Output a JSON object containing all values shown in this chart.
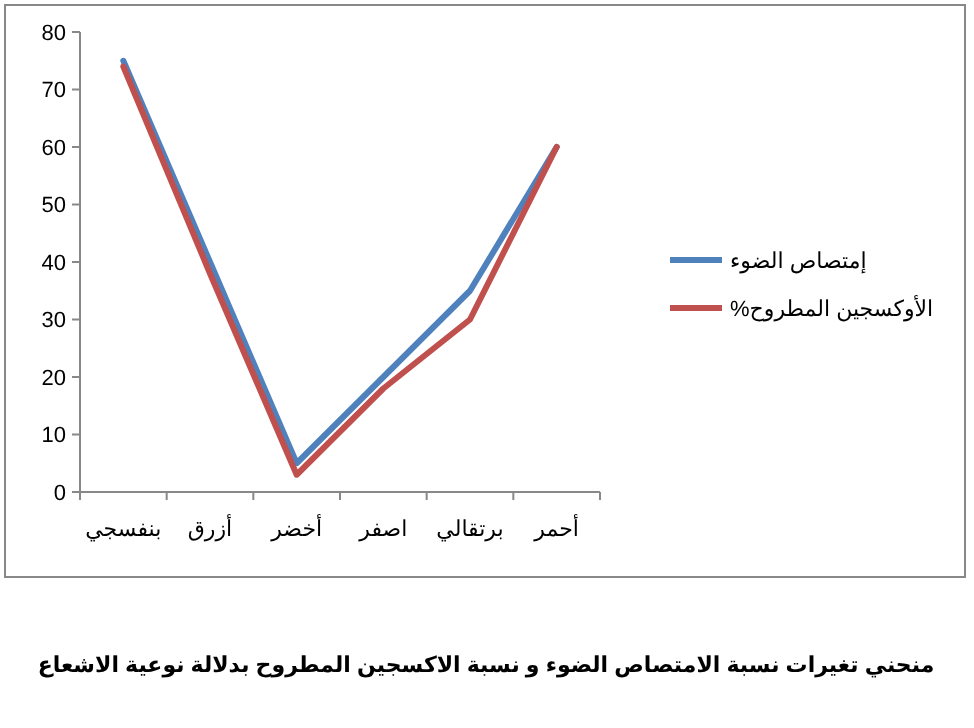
{
  "chart_data": {
    "type": "line",
    "title": "منحني تغيرات نسبة الامتصاص الضوء و نسبة الاكسجين المطروح بدلالة نوعية الاشعاع",
    "categories": [
      "بنفسجي",
      "أزرق",
      "أخضر",
      "اصفر",
      "برتقالي",
      "أحمر"
    ],
    "series": [
      {
        "name": "إمتصاص الضوء",
        "color": "#4f81bd",
        "values": [
          75,
          40,
          5,
          20,
          35,
          60
        ]
      },
      {
        "name": "الأوكسجين المطروح%",
        "color": "#c0504d",
        "values": [
          74,
          38,
          3,
          18,
          30,
          60
        ]
      }
    ],
    "ylim": [
      0,
      80
    ],
    "yticks": [
      0,
      10,
      20,
      30,
      40,
      50,
      60,
      70,
      80
    ],
    "grid": false,
    "legend": "right",
    "marker": "none",
    "line_style": "solid"
  }
}
